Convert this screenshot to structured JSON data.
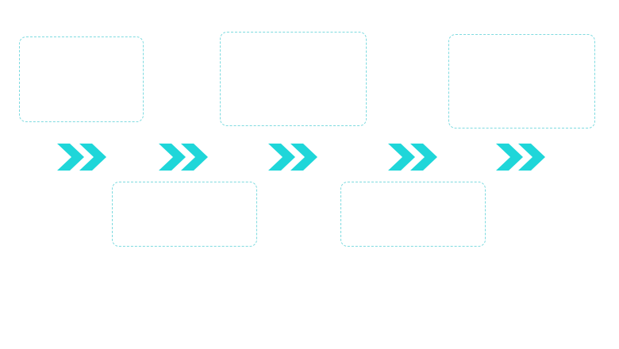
{
  "diagram": {
    "accent_color": "#1fd6d9",
    "box_border_color": "#7fdbe0",
    "arrow_icon": "double-chevron-right-icon",
    "boxes": [
      {
        "label": ""
      },
      {
        "label": ""
      },
      {
        "label": ""
      },
      {
        "label": ""
      },
      {
        "label": ""
      }
    ]
  }
}
